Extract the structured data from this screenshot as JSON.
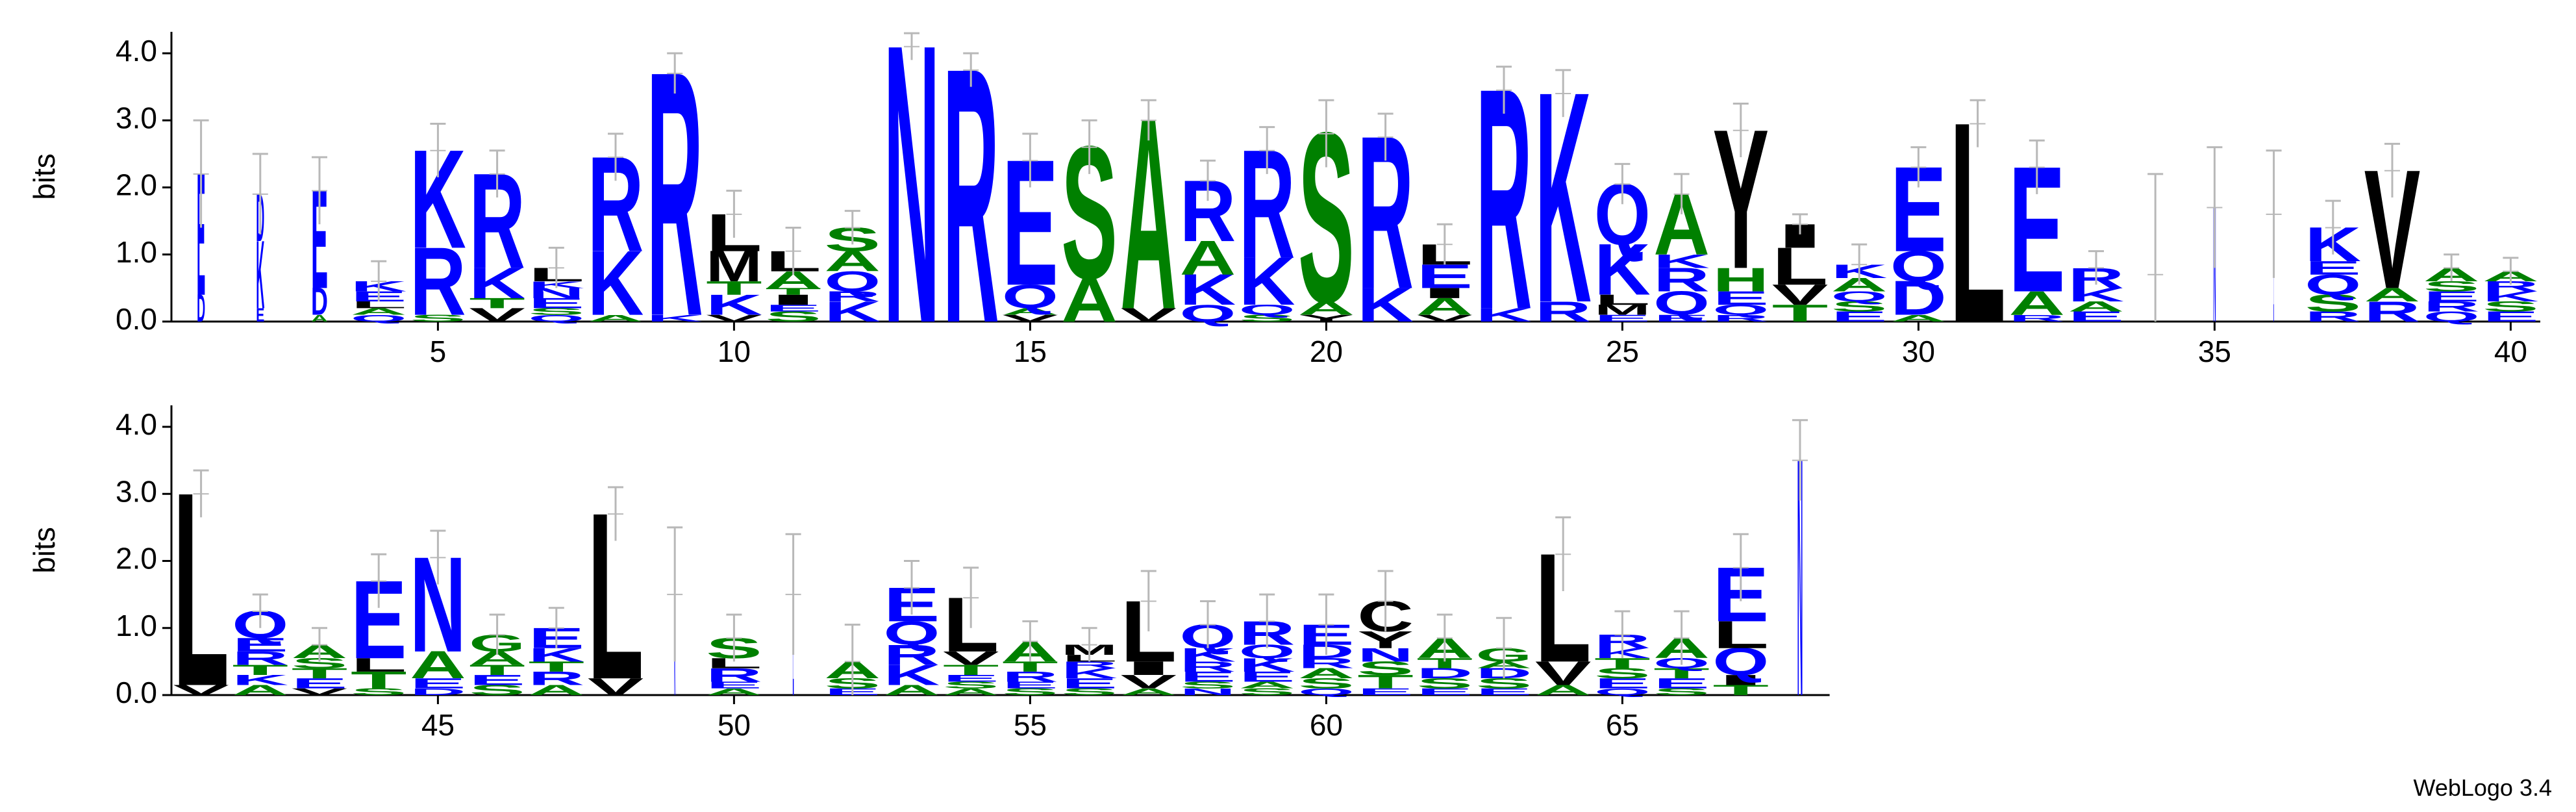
{
  "chart_data": [
    {
      "type": "logo",
      "ylabel": "bits",
      "ylim": [
        0,
        4.32
      ],
      "yticks": [
        {
          "value": 0,
          "label": "0.0"
        },
        {
          "value": 1,
          "label": "1.0"
        },
        {
          "value": 2,
          "label": "2.0"
        },
        {
          "value": 3,
          "label": "3.0"
        },
        {
          "value": 4,
          "label": "4.0"
        }
      ],
      "xlim": [
        0.5,
        40.5
      ],
      "xticks": [
        5,
        10,
        15,
        20,
        25,
        30,
        35,
        40
      ],
      "positions": [
        {
          "x": 1,
          "letters": [
            "D",
            "E"
          ],
          "heights": [
            0.4,
            1.8
          ],
          "error": 0.8,
          "weight": 0.15
        },
        {
          "x": 2,
          "letters": [
            "E",
            "K",
            "D"
          ],
          "heights": [
            0.2,
            1.0,
            0.7
          ],
          "error": 0.6,
          "weight": 0.15
        },
        {
          "x": 3,
          "letters": [
            "A",
            "D",
            "E"
          ],
          "heights": [
            0.1,
            0.4,
            1.45
          ],
          "error": 0.5,
          "weight": 0.3
        },
        {
          "x": 4,
          "letters": [
            "Q",
            "A",
            "L",
            "E",
            "K"
          ],
          "heights": [
            0.1,
            0.1,
            0.1,
            0.15,
            0.15
          ],
          "error": 0.3
        },
        {
          "x": 5,
          "letters": [
            "S",
            "R",
            "K"
          ],
          "heights": [
            0.1,
            1.0,
            1.45
          ],
          "error": 0.4
        },
        {
          "x": 6,
          "letters": [
            "V",
            "T",
            "K",
            "R"
          ],
          "heights": [
            0.2,
            0.15,
            0.45,
            1.4
          ],
          "error": 0.35
        },
        {
          "x": 7,
          "letters": [
            "Q",
            "S",
            "E",
            "N",
            "K",
            "L"
          ],
          "heights": [
            0.1,
            0.1,
            0.15,
            0.15,
            0.1,
            0.2
          ],
          "error": 0.3
        },
        {
          "x": 8,
          "letters": [
            "A",
            "K",
            "R"
          ],
          "heights": [
            0.1,
            0.95,
            1.4
          ],
          "error": 0.35
        },
        {
          "x": 9,
          "letters": [
            "K",
            "R"
          ],
          "heights": [
            0.1,
            3.6
          ],
          "error": 0.3
        },
        {
          "x": 10,
          "letters": [
            "V",
            "K",
            "T",
            "M",
            "L"
          ],
          "heights": [
            0.1,
            0.3,
            0.2,
            0.45,
            0.55
          ],
          "error": 0.35
        },
        {
          "x": 11,
          "letters": [
            "S",
            "E",
            "I",
            "T",
            "A",
            "L"
          ],
          "heights": [
            0.15,
            0.1,
            0.15,
            0.1,
            0.25,
            0.3
          ],
          "error": 0.35
        },
        {
          "x": 12,
          "letters": [
            "K",
            "R",
            "Q",
            "A",
            "S"
          ],
          "heights": [
            0.3,
            0.15,
            0.3,
            0.3,
            0.35
          ],
          "error": 0.25
        },
        {
          "x": 13,
          "letters": [
            "N"
          ],
          "heights": [
            4.1
          ],
          "error": 0.2
        },
        {
          "x": 14,
          "letters": [
            "R"
          ],
          "heights": [
            3.75
          ],
          "error": 0.25
        },
        {
          "x": 15,
          "letters": [
            "V",
            "A",
            "Q",
            "E"
          ],
          "heights": [
            0.1,
            0.1,
            0.35,
            1.85
          ],
          "error": 0.4
        },
        {
          "x": 16,
          "letters": [
            "A",
            "S"
          ],
          "heights": [
            0.65,
            1.95
          ],
          "error": 0.4
        },
        {
          "x": 17,
          "letters": [
            "V",
            "A"
          ],
          "heights": [
            0.2,
            2.8
          ],
          "error": 0.3
        },
        {
          "x": 18,
          "letters": [
            "Q",
            "K",
            "A",
            "R"
          ],
          "heights": [
            0.25,
            0.45,
            0.5,
            0.9
          ],
          "error": 0.3
        },
        {
          "x": 19,
          "letters": [
            "S",
            "Q",
            "K",
            "R"
          ],
          "heights": [
            0.1,
            0.15,
            0.7,
            1.6
          ],
          "error": 0.35
        },
        {
          "x": 20,
          "letters": [
            "Y",
            "A",
            "S"
          ],
          "heights": [
            0.1,
            0.2,
            2.5
          ],
          "error": 0.5
        },
        {
          "x": 21,
          "letters": [
            "K",
            "R"
          ],
          "heights": [
            0.5,
            2.25
          ],
          "error": 0.35
        },
        {
          "x": 22,
          "letters": [
            "V",
            "A",
            "I",
            "E",
            "L"
          ],
          "heights": [
            0.1,
            0.25,
            0.15,
            0.35,
            0.3
          ],
          "error": 0.3
        },
        {
          "x": 23,
          "letters": [
            "K",
            "R"
          ],
          "heights": [
            0.2,
            3.25
          ],
          "error": 0.35
        },
        {
          "x": 24,
          "letters": [
            "R",
            "K"
          ],
          "heights": [
            0.3,
            3.1
          ],
          "error": 0.35
        },
        {
          "x": 25,
          "letters": [
            "E",
            "M",
            "L",
            "K",
            "Q"
          ],
          "heights": [
            0.1,
            0.15,
            0.15,
            0.75,
            0.9
          ],
          "error": 0.3
        },
        {
          "x": 26,
          "letters": [
            "E",
            "Q",
            "R",
            "K",
            "A"
          ],
          "heights": [
            0.1,
            0.35,
            0.35,
            0.2,
            0.9
          ],
          "error": 0.3
        },
        {
          "x": 27,
          "letters": [
            "R",
            "Q",
            "E",
            "H",
            "Y"
          ],
          "heights": [
            0.1,
            0.15,
            0.2,
            0.35,
            2.05
          ],
          "error": 0.4
        },
        {
          "x": 28,
          "letters": [
            "T",
            "V",
            "L",
            "I"
          ],
          "heights": [
            0.25,
            0.3,
            0.55,
            0.35
          ],
          "error": 0.15
        },
        {
          "x": 29,
          "letters": [
            "E",
            "S",
            "Q",
            "A",
            "K"
          ],
          "heights": [
            0.15,
            0.15,
            0.15,
            0.2,
            0.2
          ],
          "error": 0.3
        },
        {
          "x": 30,
          "letters": [
            "A",
            "D",
            "Q",
            "E"
          ],
          "heights": [
            0.1,
            0.5,
            0.45,
            1.25
          ],
          "error": 0.3
        },
        {
          "x": 31,
          "letters": [
            "L"
          ],
          "heights": [
            2.95
          ],
          "error": 0.35
        },
        {
          "x": 32,
          "letters": [
            "R",
            "A",
            "E"
          ],
          "heights": [
            0.1,
            0.35,
            1.85
          ],
          "error": 0.4
        },
        {
          "x": 33,
          "letters": [
            "E",
            "A",
            "K",
            "R"
          ],
          "heights": [
            0.15,
            0.15,
            0.2,
            0.3
          ],
          "error": 0.25
        },
        {
          "x": 34,
          "letters": [
            "G"
          ],
          "heights": [
            0.7
          ],
          "error": 1.5,
          "weight": 0.03
        },
        {
          "x": 35,
          "letters": [
            "N"
          ],
          "heights": [
            1.7
          ],
          "error": 0.9,
          "weight": 0.05
        },
        {
          "x": 36,
          "letters": [
            "E"
          ],
          "heights": [
            1.6
          ],
          "error": 0.95,
          "weight": 0.01
        },
        {
          "x": 37,
          "letters": [
            "R",
            "S",
            "Q",
            "E",
            "K"
          ],
          "heights": [
            0.15,
            0.25,
            0.3,
            0.2,
            0.5
          ],
          "error": 0.4
        },
        {
          "x": 38,
          "letters": [
            "R",
            "A",
            "V"
          ],
          "heights": [
            0.3,
            0.2,
            1.75
          ],
          "error": 0.4
        },
        {
          "x": 39,
          "letters": [
            "Q",
            "R",
            "E",
            "S",
            "A"
          ],
          "heights": [
            0.15,
            0.15,
            0.15,
            0.15,
            0.2
          ],
          "error": 0.2
        },
        {
          "x": 40,
          "letters": [
            "E",
            "S",
            "K",
            "R",
            "A"
          ],
          "heights": [
            0.15,
            0.15,
            0.15,
            0.15,
            0.15
          ],
          "error": 0.2
        }
      ]
    },
    {
      "type": "logo",
      "ylabel": "bits",
      "ylim": [
        0,
        4.32
      ],
      "yticks": [
        {
          "value": 0,
          "label": "0.0"
        },
        {
          "value": 1,
          "label": "1.0"
        },
        {
          "value": 2,
          "label": "2.0"
        },
        {
          "value": 3,
          "label": "3.0"
        },
        {
          "value": 4,
          "label": "4.0"
        }
      ],
      "xlim": [
        40.5,
        68.5
      ],
      "xticks": [
        45,
        50,
        55,
        60,
        65
      ],
      "positions": [
        {
          "x": 41,
          "letters": [
            "V",
            "L"
          ],
          "heights": [
            0.15,
            2.85
          ],
          "error": 0.35
        },
        {
          "x": 42,
          "letters": [
            "A",
            "K",
            "T",
            "R",
            "E",
            "Q"
          ],
          "heights": [
            0.15,
            0.15,
            0.15,
            0.2,
            0.2,
            0.4
          ],
          "error": 0.25
        },
        {
          "x": 43,
          "letters": [
            "V",
            "E",
            "T",
            "S",
            "A"
          ],
          "heights": [
            0.1,
            0.15,
            0.15,
            0.15,
            0.2
          ],
          "error": 0.25
        },
        {
          "x": 44,
          "letters": [
            "S",
            "T",
            "L",
            "E"
          ],
          "heights": [
            0.1,
            0.25,
            0.2,
            1.15
          ],
          "error": 0.4
        },
        {
          "x": 45,
          "letters": [
            "D",
            "E",
            "A",
            "N"
          ],
          "heights": [
            0.1,
            0.15,
            0.4,
            1.4
          ],
          "error": 0.4
        },
        {
          "x": 46,
          "letters": [
            "S",
            "E",
            "T",
            "A",
            "G"
          ],
          "heights": [
            0.15,
            0.15,
            0.15,
            0.2,
            0.25
          ],
          "error": 0.3
        },
        {
          "x": 47,
          "letters": [
            "A",
            "R",
            "T",
            "K",
            "E"
          ],
          "heights": [
            0.15,
            0.2,
            0.15,
            0.2,
            0.3
          ],
          "error": 0.3
        },
        {
          "x": 48,
          "letters": [
            "V",
            "L"
          ],
          "heights": [
            0.25,
            2.45
          ],
          "error": 0.4
        },
        {
          "x": 49,
          "letters": [
            "K"
          ],
          "heights": [
            1.5
          ],
          "error": 1.0,
          "weight": 0.03
        },
        {
          "x": 50,
          "letters": [
            "A",
            "E",
            "R",
            "L",
            "S"
          ],
          "heights": [
            0.1,
            0.1,
            0.2,
            0.15,
            0.3
          ],
          "error": 0.35
        },
        {
          "x": 51,
          "letters": [
            "E"
          ],
          "heights": [
            1.5
          ],
          "error": 0.9,
          "weight": 0.02
        },
        {
          "x": 52,
          "letters": [
            "E",
            "S",
            "A"
          ],
          "heights": [
            0.1,
            0.15,
            0.25
          ],
          "error": 0.55
        },
        {
          "x": 53,
          "letters": [
            "A",
            "K",
            "R",
            "Q",
            "E"
          ],
          "heights": [
            0.15,
            0.3,
            0.3,
            0.35,
            0.5
          ],
          "error": 0.4
        },
        {
          "x": 54,
          "letters": [
            "A",
            "S",
            "E",
            "T",
            "V",
            "L"
          ],
          "heights": [
            0.1,
            0.1,
            0.1,
            0.15,
            0.2,
            0.8
          ],
          "error": 0.45
        },
        {
          "x": 55,
          "letters": [
            "S",
            "E",
            "R",
            "T",
            "A"
          ],
          "heights": [
            0.1,
            0.1,
            0.15,
            0.15,
            0.3
          ],
          "error": 0.3
        },
        {
          "x": 56,
          "letters": [
            "S",
            "E",
            "K",
            "R",
            "L",
            "M"
          ],
          "heights": [
            0.1,
            0.15,
            0.15,
            0.1,
            0.1,
            0.15
          ],
          "error": 0.25
        },
        {
          "x": 57,
          "letters": [
            "A",
            "V",
            "I",
            "L"
          ],
          "heights": [
            0.1,
            0.2,
            0.2,
            0.9
          ],
          "error": 0.45
        },
        {
          "x": 58,
          "letters": [
            "N",
            "S",
            "E",
            "R",
            "K",
            "Q"
          ],
          "heights": [
            0.1,
            0.1,
            0.15,
            0.15,
            0.2,
            0.35
          ],
          "error": 0.35
        },
        {
          "x": 59,
          "letters": [
            "S",
            "A",
            "E",
            "K",
            "Q",
            "R"
          ],
          "heights": [
            0.1,
            0.1,
            0.15,
            0.2,
            0.2,
            0.35
          ],
          "error": 0.4
        },
        {
          "x": 60,
          "letters": [
            "Q",
            "S",
            "A",
            "R",
            "D",
            "E"
          ],
          "heights": [
            0.1,
            0.15,
            0.15,
            0.15,
            0.2,
            0.3
          ],
          "error": 0.45
        },
        {
          "x": 61,
          "letters": [
            "E",
            "T",
            "S",
            "N",
            "Y",
            "C"
          ],
          "heights": [
            0.1,
            0.2,
            0.2,
            0.2,
            0.25,
            0.45
          ],
          "error": 0.45
        },
        {
          "x": 62,
          "letters": [
            "E",
            "S",
            "D",
            "T",
            "A"
          ],
          "heights": [
            0.1,
            0.15,
            0.15,
            0.15,
            0.3
          ],
          "error": 0.35
        },
        {
          "x": 63,
          "letters": [
            "E",
            "S",
            "D",
            "A",
            "G"
          ],
          "heights": [
            0.1,
            0.15,
            0.15,
            0.1,
            0.2
          ],
          "error": 0.45
        },
        {
          "x": 64,
          "letters": [
            "A",
            "V",
            "L"
          ],
          "heights": [
            0.15,
            0.35,
            1.6
          ],
          "error": 0.55
        },
        {
          "x": 65,
          "letters": [
            "Q",
            "E",
            "S",
            "T",
            "K",
            "R"
          ],
          "heights": [
            0.1,
            0.15,
            0.15,
            0.15,
            0.15,
            0.2
          ],
          "error": 0.35
        },
        {
          "x": 66,
          "letters": [
            "S",
            "E",
            "T",
            "Q",
            "A"
          ],
          "heights": [
            0.1,
            0.15,
            0.15,
            0.15,
            0.3
          ],
          "error": 0.4
        },
        {
          "x": 67,
          "letters": [
            "T",
            "I",
            "Q",
            "L",
            "E"
          ],
          "heights": [
            0.15,
            0.15,
            0.4,
            0.4,
            0.8
          ],
          "error": 0.5
        },
        {
          "x": 68,
          "letters": [
            "N"
          ],
          "heights": [
            3.5
          ],
          "error": 0.6,
          "weight": 0.1
        }
      ]
    }
  ],
  "color_groups": [
    {
      "residues": "RKDENQ",
      "color": "#0000ff"
    },
    {
      "residues": "SGHTAP",
      "color": "#008000"
    },
    {
      "residues": "YVMCLFIW",
      "color": "#000000"
    }
  ],
  "error_color": "#b8b8b8",
  "footer": "WebLogo 3.4"
}
